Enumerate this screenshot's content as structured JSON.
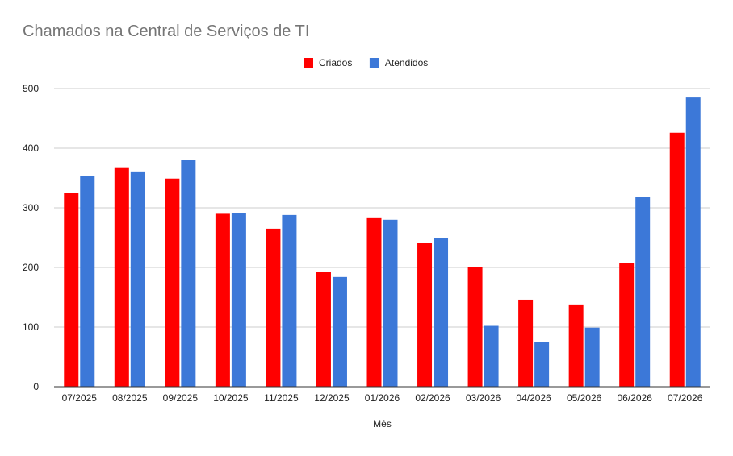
{
  "chart_data": {
    "type": "bar",
    "title": "Chamados na Central de Serviços de TI",
    "xlabel": "Mês",
    "ylabel": "",
    "ylim": [
      0,
      500
    ],
    "yticks": [
      0,
      100,
      200,
      300,
      400,
      500
    ],
    "grid": true,
    "legend_position": "top-center",
    "categories": [
      "07/2025",
      "08/2025",
      "09/2025",
      "10/2025",
      "11/2025",
      "12/2025",
      "01/2026",
      "02/2026",
      "03/2026",
      "04/2026",
      "05/2026",
      "06/2026",
      "07/2026"
    ],
    "series": [
      {
        "name": "Criados",
        "color": "#ff0000",
        "values": [
          325,
          368,
          349,
          290,
          265,
          192,
          284,
          241,
          201,
          146,
          138,
          208,
          426
        ]
      },
      {
        "name": "Atendidos",
        "color": "#3c78d8",
        "values": [
          354,
          361,
          380,
          291,
          288,
          184,
          280,
          249,
          102,
          75,
          99,
          318,
          485
        ]
      }
    ]
  }
}
